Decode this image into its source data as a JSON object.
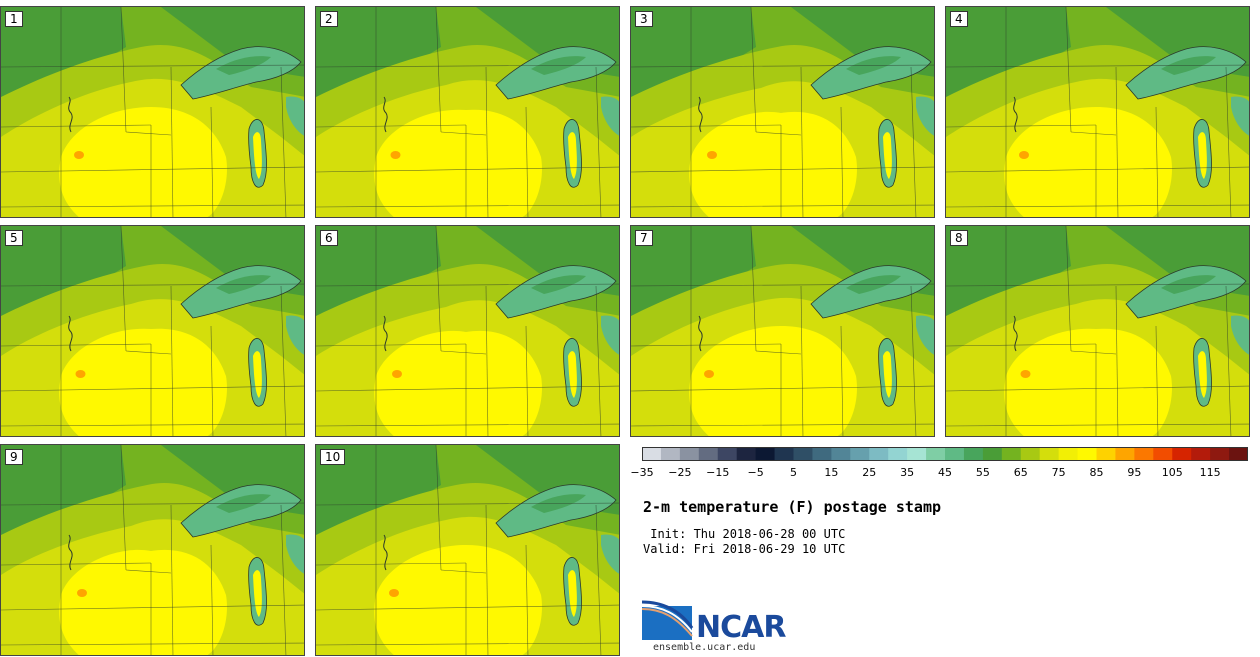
{
  "panels": [
    {
      "label": "1"
    },
    {
      "label": "2"
    },
    {
      "label": "3"
    },
    {
      "label": "4"
    },
    {
      "label": "5"
    },
    {
      "label": "6"
    },
    {
      "label": "7"
    },
    {
      "label": "8"
    },
    {
      "label": "9"
    },
    {
      "label": "10"
    }
  ],
  "colorbar": {
    "colors": [
      "#d9dde4",
      "#b1b7c2",
      "#8a92a1",
      "#636c81",
      "#3d4663",
      "#1d2540",
      "#0c1833",
      "#1f3550",
      "#2f4f66",
      "#3f6a7f",
      "#528597",
      "#66a0ad",
      "#7dbbc3",
      "#93d4d2",
      "#a6e4d4",
      "#7fcea5",
      "#5fba85",
      "#48a55c",
      "#4a9d37",
      "#74b320",
      "#a8c913",
      "#d4de0c",
      "#f2ef05",
      "#fff900",
      "#fed200",
      "#fea500",
      "#fb7800",
      "#f24d00",
      "#d62400",
      "#b31b0b",
      "#8e1910",
      "#6b1310"
    ],
    "tick_labels": [
      "−35",
      "−25",
      "−15",
      "−5",
      "5",
      "15",
      "25",
      "35",
      "45",
      "55",
      "65",
      "75",
      "85",
      "95",
      "105",
      "115"
    ]
  },
  "title": "2-m temperature (F) postage stamp",
  "init_line": " Init: Thu 2018-06-28 00 UTC",
  "valid_line": "Valid: Fri 2018-06-29 10 UTC",
  "logo": {
    "text": "NCAR",
    "site": "ensemble.ucar.edu",
    "brand_color": "#1b4a9c"
  },
  "map_colors": {
    "warm": "#fff900",
    "mild": "#d4de0c",
    "cool": "#a8c913",
    "cooler": "#74b320",
    "cold": "#4a9d37",
    "lake": "#5fba85",
    "lake_deep": "#48a55c",
    "hot": "#fea500"
  }
}
